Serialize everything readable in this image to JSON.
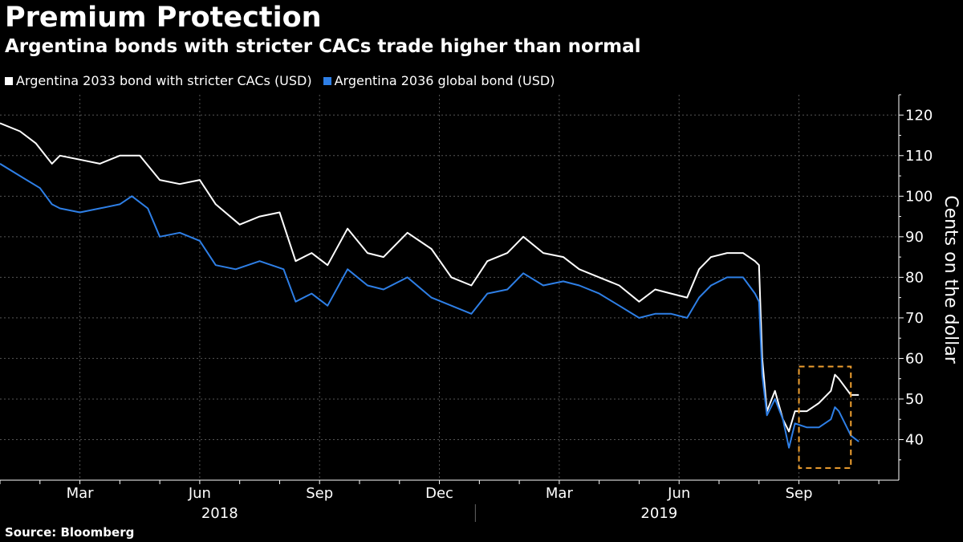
{
  "chart_data": {
    "type": "line",
    "title": "Premium Protection",
    "subtitle": "Argentina bonds with stricter CACs trade higher than normal",
    "ylabel": "Cents on the dollar",
    "ylim": [
      30,
      125
    ],
    "yticks": [
      40,
      50,
      60,
      70,
      80,
      90,
      100,
      110,
      120
    ],
    "xlim": [
      0,
      22.5
    ],
    "xticks": [
      {
        "label": "Mar",
        "x": 2
      },
      {
        "label": "Jun",
        "x": 5
      },
      {
        "label": "Sep",
        "x": 8
      },
      {
        "label": "Dec",
        "x": 11
      },
      {
        "label": "Mar",
        "x": 14
      },
      {
        "label": "Jun",
        "x": 17
      },
      {
        "label": "Sep",
        "x": 20
      }
    ],
    "year_labels": [
      {
        "label": "2018",
        "x": 5.5
      },
      {
        "label": "2019",
        "x": 16.5
      }
    ],
    "year_divider_x": 11.9,
    "grid": true,
    "legend_position": "top-left",
    "series": [
      {
        "name": "Argentina 2033 bond with stricter CACs (USD)",
        "color": "#ffffff",
        "points": [
          [
            0,
            118
          ],
          [
            0.5,
            116
          ],
          [
            0.9,
            113
          ],
          [
            1.3,
            108
          ],
          [
            1.5,
            110
          ],
          [
            2,
            109
          ],
          [
            2.5,
            108
          ],
          [
            3,
            110
          ],
          [
            3.5,
            110
          ],
          [
            4,
            104
          ],
          [
            4.5,
            103
          ],
          [
            5,
            104
          ],
          [
            5.4,
            98
          ],
          [
            6,
            93
          ],
          [
            6.5,
            95
          ],
          [
            7,
            96
          ],
          [
            7.4,
            84
          ],
          [
            7.8,
            86
          ],
          [
            8.2,
            83
          ],
          [
            8.7,
            92
          ],
          [
            9.2,
            86
          ],
          [
            9.6,
            85
          ],
          [
            10.2,
            91
          ],
          [
            10.8,
            87
          ],
          [
            11.3,
            80
          ],
          [
            11.8,
            78
          ],
          [
            12.2,
            84
          ],
          [
            12.7,
            86
          ],
          [
            13.1,
            90
          ],
          [
            13.6,
            86
          ],
          [
            14.1,
            85
          ],
          [
            14.5,
            82
          ],
          [
            15,
            80
          ],
          [
            15.5,
            78
          ],
          [
            16,
            74
          ],
          [
            16.4,
            77
          ],
          [
            16.8,
            76
          ],
          [
            17.2,
            75
          ],
          [
            17.5,
            82
          ],
          [
            17.8,
            85
          ],
          [
            18.2,
            86
          ],
          [
            18.6,
            86
          ],
          [
            18.9,
            84
          ],
          [
            19.0,
            83
          ],
          [
            19.08,
            60
          ],
          [
            19.2,
            47
          ],
          [
            19.4,
            52
          ],
          [
            19.6,
            45
          ],
          [
            19.75,
            42
          ],
          [
            19.9,
            47
          ],
          [
            20.2,
            47
          ],
          [
            20.5,
            49
          ],
          [
            20.8,
            52
          ],
          [
            20.9,
            56
          ],
          [
            21.0,
            55
          ],
          [
            21.3,
            51
          ],
          [
            21.5,
            51
          ]
        ]
      },
      {
        "name": "Argentina 2036 global bond (USD)",
        "color": "#2e7fe6",
        "points": [
          [
            0,
            108
          ],
          [
            0.5,
            105
          ],
          [
            1,
            102
          ],
          [
            1.3,
            98
          ],
          [
            1.5,
            97
          ],
          [
            2,
            96
          ],
          [
            2.5,
            97
          ],
          [
            3,
            98
          ],
          [
            3.3,
            100
          ],
          [
            3.7,
            97
          ],
          [
            4,
            90
          ],
          [
            4.5,
            91
          ],
          [
            5,
            89
          ],
          [
            5.4,
            83
          ],
          [
            5.9,
            82
          ],
          [
            6.5,
            84
          ],
          [
            7.1,
            82
          ],
          [
            7.4,
            74
          ],
          [
            7.8,
            76
          ],
          [
            8.2,
            73
          ],
          [
            8.7,
            82
          ],
          [
            9.2,
            78
          ],
          [
            9.6,
            77
          ],
          [
            10.2,
            80
          ],
          [
            10.8,
            75
          ],
          [
            11.3,
            73
          ],
          [
            11.8,
            71
          ],
          [
            12.2,
            76
          ],
          [
            12.7,
            77
          ],
          [
            13.1,
            81
          ],
          [
            13.6,
            78
          ],
          [
            14.1,
            79
          ],
          [
            14.5,
            78
          ],
          [
            15,
            76
          ],
          [
            15.5,
            73
          ],
          [
            16,
            70
          ],
          [
            16.4,
            71
          ],
          [
            16.8,
            71
          ],
          [
            17.2,
            70
          ],
          [
            17.5,
            75
          ],
          [
            17.8,
            78
          ],
          [
            18.2,
            80
          ],
          [
            18.6,
            80
          ],
          [
            18.9,
            76
          ],
          [
            19.0,
            74
          ],
          [
            19.08,
            56
          ],
          [
            19.2,
            46
          ],
          [
            19.4,
            50
          ],
          [
            19.6,
            45
          ],
          [
            19.75,
            38
          ],
          [
            19.9,
            44
          ],
          [
            20.2,
            43
          ],
          [
            20.5,
            43
          ],
          [
            20.8,
            45
          ],
          [
            20.9,
            48
          ],
          [
            21.0,
            47
          ],
          [
            21.3,
            41
          ],
          [
            21.5,
            39.5
          ]
        ]
      }
    ],
    "highlight_box": {
      "x0": 20.0,
      "x1": 21.3,
      "y0": 33,
      "y1": 58,
      "color": "#f0a030"
    }
  },
  "source": "Source: Bloomberg"
}
